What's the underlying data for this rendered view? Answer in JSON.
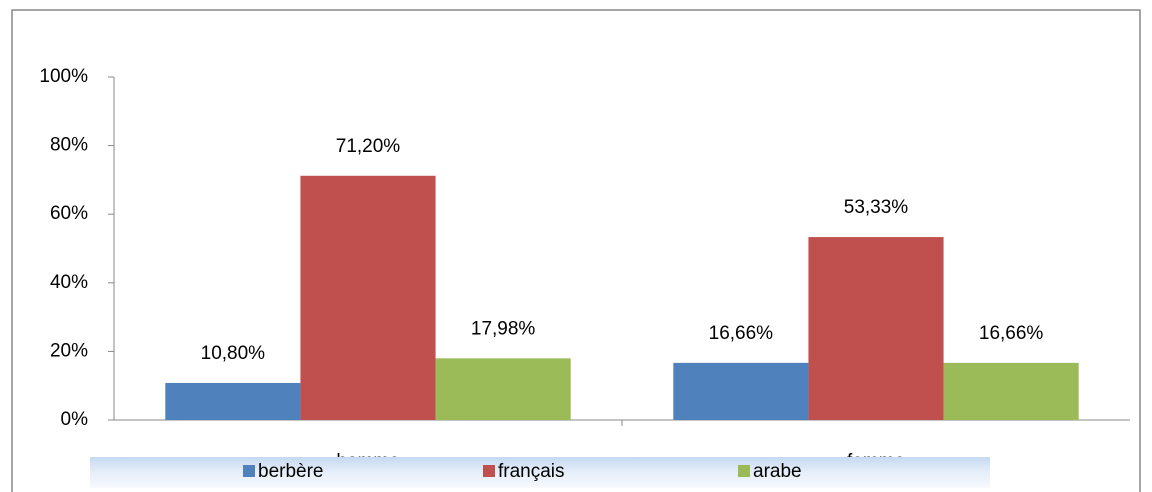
{
  "chart_data": {
    "type": "bar",
    "categories": [
      "homme",
      "femme"
    ],
    "series": [
      {
        "name": "berbère",
        "color": "#4f81bd",
        "values": [
          10.8,
          16.66
        ],
        "value_labels": [
          "10,80%",
          "16,66%"
        ]
      },
      {
        "name": "français",
        "color": "#c0504d",
        "values": [
          71.2,
          53.33
        ],
        "value_labels": [
          "71,20%",
          "53,33%"
        ]
      },
      {
        "name": "arabe",
        "color": "#9bbb59",
        "values": [
          17.98,
          16.66
        ],
        "value_labels": [
          "17,98%",
          "16,66%"
        ]
      }
    ],
    "ylim": [
      0,
      100
    ],
    "yticks": [
      {
        "value": 0,
        "label": "0%"
      },
      {
        "value": 20,
        "label": "20%"
      },
      {
        "value": 40,
        "label": "40%"
      },
      {
        "value": 60,
        "label": "60%"
      },
      {
        "value": 80,
        "label": "80%"
      },
      {
        "value": 100,
        "label": "100%"
      }
    ],
    "grid": false,
    "legend": "bottom"
  }
}
